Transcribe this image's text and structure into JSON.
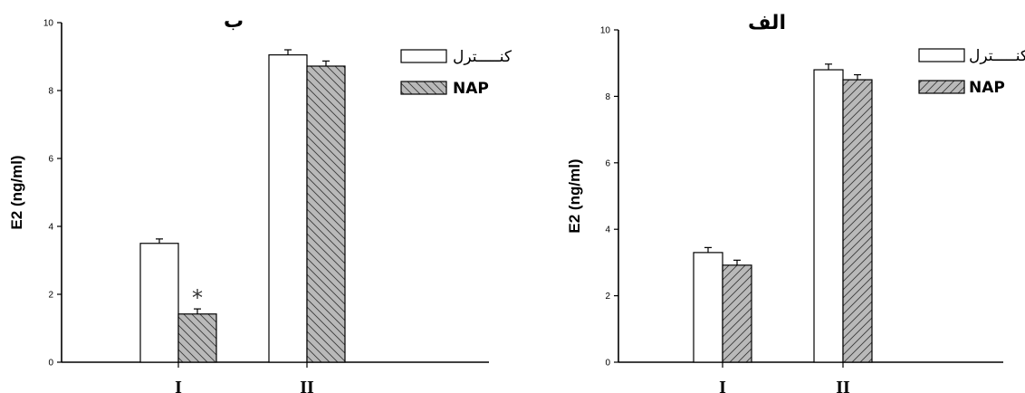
{
  "chart_data": [
    {
      "type": "bar",
      "title": "ب",
      "xlabel": "",
      "ylabel": "E2 (ng/ml)",
      "categories": [
        "I",
        "II"
      ],
      "ylim": [
        0,
        10
      ],
      "yticks": [
        "0",
        "2",
        "4",
        "6",
        "8",
        "10"
      ],
      "series": [
        {
          "name": "کنـــــترل",
          "values": [
            3.5,
            9.05
          ],
          "errors": [
            0.13,
            0.15
          ]
        },
        {
          "name": "NAP",
          "values": [
            1.42,
            8.72
          ],
          "errors": [
            0.15,
            0.15
          ]
        }
      ],
      "annotations": [
        "*"
      ],
      "legend": "top-right",
      "grid": false
    },
    {
      "type": "bar",
      "title": "الف",
      "xlabel": "",
      "ylabel": "E2 (ng/ml)",
      "categories": [
        "I",
        "II"
      ],
      "ylim": [
        0,
        10
      ],
      "yticks": [
        "0",
        "2",
        "4",
        "6",
        "8",
        "10"
      ],
      "series": [
        {
          "name": "کنـــــترل",
          "values": [
            3.3,
            8.8
          ],
          "errors": [
            0.15,
            0.17
          ]
        },
        {
          "name": "NAP",
          "values": [
            2.92,
            8.5
          ],
          "errors": [
            0.15,
            0.15
          ]
        }
      ],
      "legend": "top-right",
      "grid": false
    }
  ],
  "colors": {
    "control_fill": "#ffffff",
    "nap_fill": "#b9b9b9",
    "hatch": "#3a3a3a",
    "axis": "#000000"
  }
}
